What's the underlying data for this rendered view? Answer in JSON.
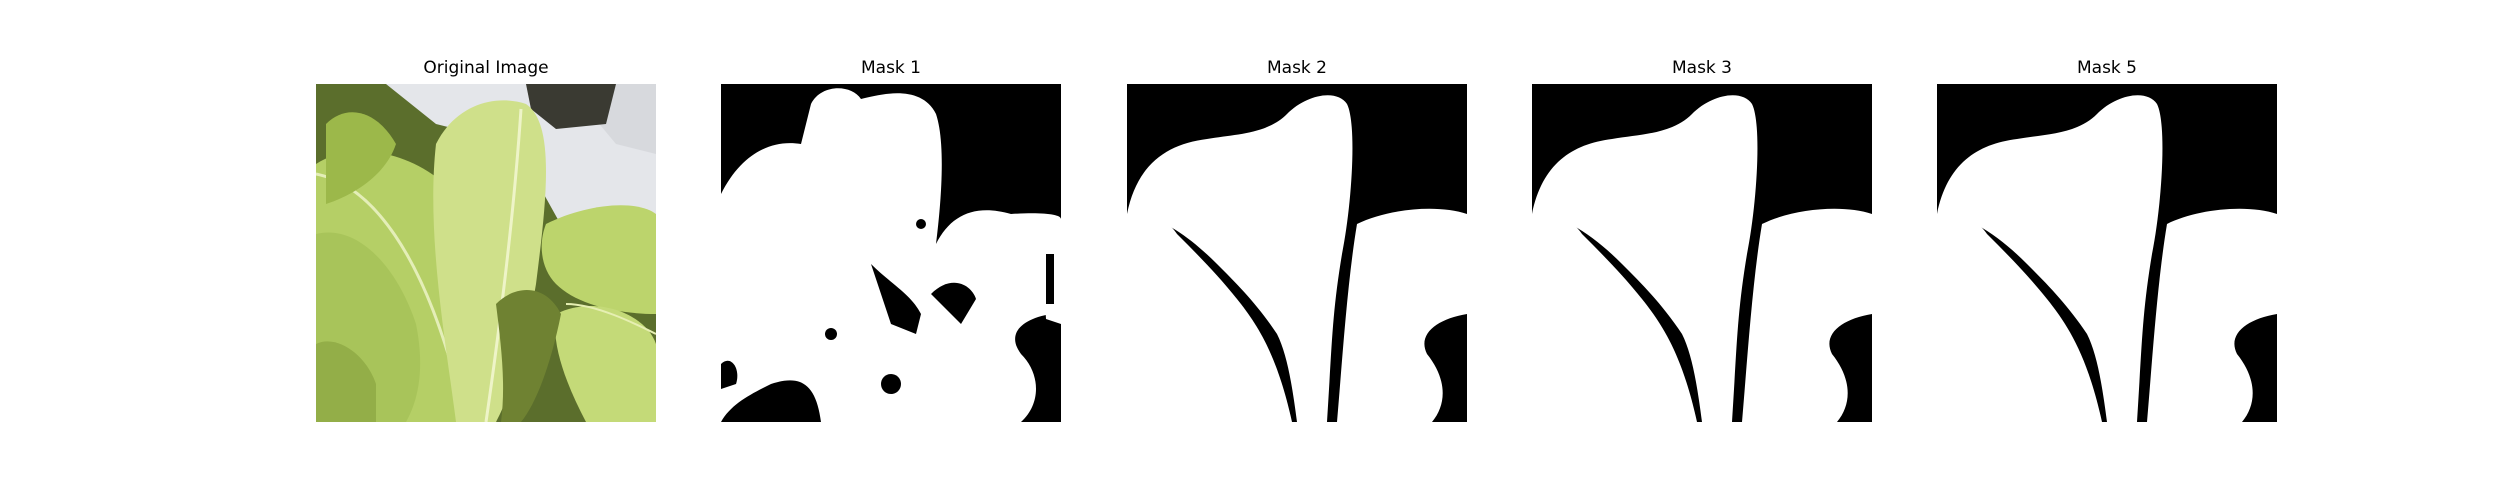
{
  "panels": [
    {
      "title": "Original Image",
      "kind": "photo"
    },
    {
      "title": "Mask 1",
      "kind": "mask-noisy"
    },
    {
      "title": "Mask 2",
      "kind": "mask"
    },
    {
      "title": "Mask 3",
      "kind": "mask"
    },
    {
      "title": "Mask 5",
      "kind": "mask"
    }
  ],
  "colors": {
    "mask_background": "#000000",
    "mask_foreground": "#ffffff",
    "leaf_light": "#cfe08a",
    "leaf_mid": "#b5cf66",
    "leaf_dark": "#8aa43c",
    "shadow": "#4f5f2a",
    "sky": "#e4e6ea"
  }
}
